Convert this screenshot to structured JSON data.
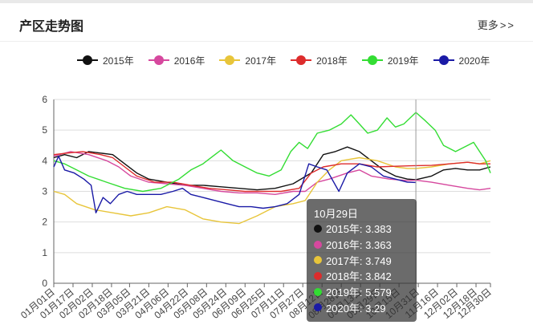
{
  "panel": {
    "title": "产区走势图",
    "more_label": "更多",
    "more_chevrons": ">>"
  },
  "legend": [
    {
      "label": "2015年",
      "color": "#111111"
    },
    {
      "label": "2016年",
      "color": "#d6489e"
    },
    {
      "label": "2017年",
      "color": "#e8c53a"
    },
    {
      "label": "2018年",
      "color": "#dd2c2c"
    },
    {
      "label": "2019年",
      "color": "#33dd33"
    },
    {
      "label": "2020年",
      "color": "#1a1aa6"
    }
  ],
  "tooltip": {
    "date": "10月29日",
    "rows": [
      {
        "label": "2015年: 3.383",
        "color": "#111111"
      },
      {
        "label": "2016年: 3.363",
        "color": "#d6489e"
      },
      {
        "label": "2017年: 3.749",
        "color": "#e8c53a"
      },
      {
        "label": "2018年: 3.842",
        "color": "#dd2c2c"
      },
      {
        "label": "2019年: 5.579",
        "color": "#33dd33"
      },
      {
        "label": "2020年: 3.29",
        "color": "#1a1aa6"
      }
    ]
  },
  "chart_data": {
    "type": "line",
    "ylim": [
      0,
      6
    ],
    "yticks": [
      0,
      1,
      2,
      3,
      4,
      5,
      6
    ],
    "x_ticks": [
      "01月01日",
      "01月17日",
      "02月02日",
      "02月18日",
      "03月05日",
      "03月21日",
      "04月06日",
      "04月22日",
      "05月08日",
      "05月24日",
      "06月09日",
      "06月25日",
      "07月11日",
      "07月27日",
      "08月12日",
      "08月28日",
      "09月13日",
      "09月29日",
      "10月15日",
      "10月31日",
      "11月16日",
      "12月02日",
      "12月18日",
      "12月30日"
    ],
    "x_day_of_year": [
      1,
      17,
      33,
      49,
      64,
      80,
      96,
      112,
      128,
      144,
      160,
      176,
      192,
      208,
      224,
      240,
      256,
      272,
      288,
      304,
      320,
      336,
      352,
      364
    ],
    "x_range_days": [
      1,
      364
    ],
    "highlight_day": 302,
    "series": [
      {
        "name": "2015年",
        "color": "#111111",
        "points": [
          [
            1,
            4.1
          ],
          [
            10,
            4.2
          ],
          [
            20,
            4.1
          ],
          [
            30,
            4.3
          ],
          [
            40,
            4.25
          ],
          [
            50,
            4.2
          ],
          [
            60,
            3.9
          ],
          [
            70,
            3.6
          ],
          [
            80,
            3.4
          ],
          [
            95,
            3.3
          ],
          [
            110,
            3.2
          ],
          [
            125,
            3.2
          ],
          [
            140,
            3.15
          ],
          [
            155,
            3.1
          ],
          [
            170,
            3.05
          ],
          [
            185,
            3.1
          ],
          [
            200,
            3.25
          ],
          [
            215,
            3.6
          ],
          [
            225,
            4.2
          ],
          [
            235,
            4.3
          ],
          [
            245,
            4.45
          ],
          [
            255,
            4.3
          ],
          [
            265,
            4.0
          ],
          [
            275,
            3.7
          ],
          [
            285,
            3.5
          ],
          [
            295,
            3.4
          ],
          [
            302,
            3.383
          ],
          [
            315,
            3.5
          ],
          [
            325,
            3.7
          ],
          [
            335,
            3.75
          ],
          [
            345,
            3.7
          ],
          [
            355,
            3.7
          ],
          [
            364,
            3.8
          ]
        ]
      },
      {
        "name": "2016年",
        "color": "#d6489e",
        "points": [
          [
            1,
            4.15
          ],
          [
            15,
            4.3
          ],
          [
            30,
            4.2
          ],
          [
            45,
            4.0
          ],
          [
            55,
            3.8
          ],
          [
            65,
            3.5
          ],
          [
            80,
            3.3
          ],
          [
            95,
            3.25
          ],
          [
            110,
            3.2
          ],
          [
            125,
            3.1
          ],
          [
            140,
            3.0
          ],
          [
            155,
            2.95
          ],
          [
            170,
            2.95
          ],
          [
            185,
            2.9
          ],
          [
            200,
            3.0
          ],
          [
            210,
            3.0
          ],
          [
            220,
            3.3
          ],
          [
            230,
            3.4
          ],
          [
            245,
            3.6
          ],
          [
            255,
            3.7
          ],
          [
            265,
            3.5
          ],
          [
            280,
            3.4
          ],
          [
            295,
            3.35
          ],
          [
            302,
            3.363
          ],
          [
            315,
            3.3
          ],
          [
            330,
            3.2
          ],
          [
            345,
            3.1
          ],
          [
            355,
            3.05
          ],
          [
            364,
            3.1
          ]
        ]
      },
      {
        "name": "2017年",
        "color": "#e8c53a",
        "points": [
          [
            1,
            3.0
          ],
          [
            10,
            2.9
          ],
          [
            20,
            2.6
          ],
          [
            35,
            2.4
          ],
          [
            50,
            2.3
          ],
          [
            65,
            2.2
          ],
          [
            80,
            2.3
          ],
          [
            95,
            2.5
          ],
          [
            110,
            2.4
          ],
          [
            125,
            2.1
          ],
          [
            140,
            2.0
          ],
          [
            155,
            1.95
          ],
          [
            170,
            2.2
          ],
          [
            185,
            2.5
          ],
          [
            200,
            2.6
          ],
          [
            210,
            2.7
          ],
          [
            220,
            3.3
          ],
          [
            230,
            3.7
          ],
          [
            240,
            4.0
          ],
          [
            255,
            4.1
          ],
          [
            270,
            4.0
          ],
          [
            285,
            3.8
          ],
          [
            295,
            3.75
          ],
          [
            302,
            3.749
          ],
          [
            315,
            3.8
          ],
          [
            330,
            3.9
          ],
          [
            345,
            3.95
          ],
          [
            355,
            3.9
          ],
          [
            364,
            4.0
          ]
        ]
      },
      {
        "name": "2018年",
        "color": "#dd2c2c",
        "points": [
          [
            1,
            4.2
          ],
          [
            12,
            4.25
          ],
          [
            25,
            4.3
          ],
          [
            40,
            4.2
          ],
          [
            50,
            4.1
          ],
          [
            60,
            3.8
          ],
          [
            70,
            3.5
          ],
          [
            85,
            3.3
          ],
          [
            100,
            3.3
          ],
          [
            115,
            3.2
          ],
          [
            130,
            3.1
          ],
          [
            145,
            3.05
          ],
          [
            160,
            3.0
          ],
          [
            175,
            3.0
          ],
          [
            190,
            3.0
          ],
          [
            205,
            3.1
          ],
          [
            215,
            3.6
          ],
          [
            225,
            3.8
          ],
          [
            240,
            3.9
          ],
          [
            255,
            3.9
          ],
          [
            270,
            3.8
          ],
          [
            285,
            3.82
          ],
          [
            302,
            3.842
          ],
          [
            315,
            3.85
          ],
          [
            330,
            3.9
          ],
          [
            345,
            3.95
          ],
          [
            355,
            3.9
          ],
          [
            364,
            3.9
          ]
        ]
      },
      {
        "name": "2019年",
        "color": "#33dd33",
        "points": [
          [
            1,
            4.0
          ],
          [
            10,
            3.9
          ],
          [
            20,
            3.7
          ],
          [
            30,
            3.5
          ],
          [
            45,
            3.3
          ],
          [
            60,
            3.1
          ],
          [
            75,
            3.0
          ],
          [
            90,
            3.1
          ],
          [
            105,
            3.4
          ],
          [
            115,
            3.7
          ],
          [
            125,
            3.9
          ],
          [
            135,
            4.2
          ],
          [
            140,
            4.35
          ],
          [
            150,
            4.0
          ],
          [
            160,
            3.8
          ],
          [
            170,
            3.6
          ],
          [
            180,
            3.5
          ],
          [
            190,
            3.7
          ],
          [
            198,
            4.3
          ],
          [
            205,
            4.6
          ],
          [
            212,
            4.4
          ],
          [
            220,
            4.9
          ],
          [
            230,
            5.0
          ],
          [
            240,
            5.2
          ],
          [
            248,
            5.5
          ],
          [
            255,
            5.2
          ],
          [
            262,
            4.9
          ],
          [
            270,
            5.0
          ],
          [
            278,
            5.4
          ],
          [
            285,
            5.1
          ],
          [
            292,
            5.2
          ],
          [
            302,
            5.579
          ],
          [
            310,
            5.3
          ],
          [
            318,
            5.0
          ],
          [
            325,
            4.5
          ],
          [
            335,
            4.3
          ],
          [
            345,
            4.5
          ],
          [
            350,
            4.6
          ],
          [
            355,
            4.3
          ],
          [
            360,
            4.0
          ],
          [
            364,
            3.6
          ]
        ]
      },
      {
        "name": "2020年",
        "color": "#1a1aa6",
        "points": [
          [
            1,
            3.8
          ],
          [
            5,
            4.15
          ],
          [
            10,
            3.7
          ],
          [
            18,
            3.6
          ],
          [
            26,
            3.4
          ],
          [
            32,
            3.2
          ],
          [
            36,
            2.3
          ],
          [
            42,
            2.8
          ],
          [
            48,
            2.6
          ],
          [
            55,
            2.9
          ],
          [
            62,
            3.0
          ],
          [
            70,
            2.9
          ],
          [
            80,
            2.9
          ],
          [
            90,
            2.9
          ],
          [
            100,
            3.0
          ],
          [
            108,
            3.1
          ],
          [
            115,
            2.9
          ],
          [
            125,
            2.8
          ],
          [
            135,
            2.7
          ],
          [
            145,
            2.6
          ],
          [
            155,
            2.5
          ],
          [
            165,
            2.5
          ],
          [
            175,
            2.45
          ],
          [
            185,
            2.5
          ],
          [
            195,
            2.6
          ],
          [
            205,
            2.9
          ],
          [
            213,
            3.9
          ],
          [
            220,
            3.8
          ],
          [
            228,
            3.7
          ],
          [
            238,
            3.0
          ],
          [
            245,
            3.6
          ],
          [
            255,
            3.9
          ],
          [
            265,
            3.8
          ],
          [
            275,
            3.5
          ],
          [
            285,
            3.4
          ],
          [
            295,
            3.3
          ],
          [
            302,
            3.29
          ]
        ]
      }
    ]
  }
}
